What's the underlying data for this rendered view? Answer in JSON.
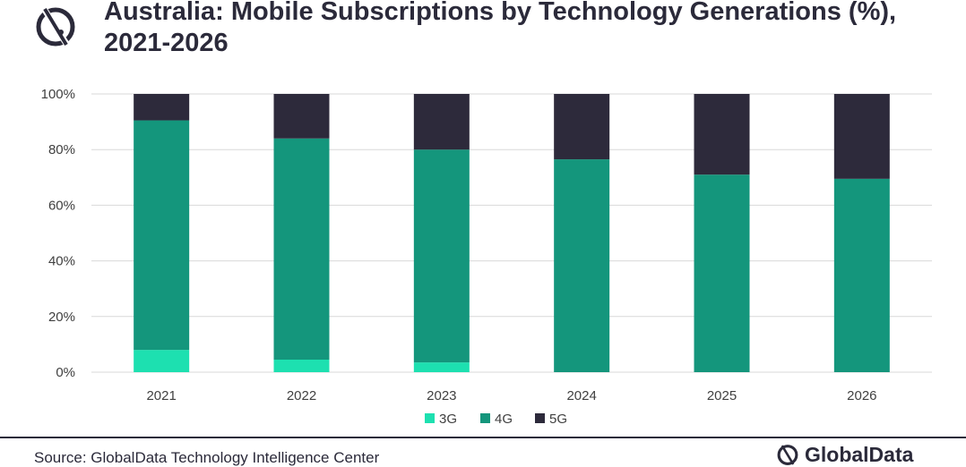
{
  "title": "Australia: Mobile Subscriptions by Technology Generations (%), 2021-2026",
  "source": "Source: GlobalData Technology Intelligence Center",
  "brand": "GlobalData",
  "colors": {
    "3G": "#1de0b0",
    "4G": "#14967c",
    "5G": "#2d2a3b",
    "grid": "#d9d9d9",
    "text": "#404040"
  },
  "chart_data": {
    "type": "bar",
    "stacked": true,
    "categories": [
      "2021",
      "2022",
      "2023",
      "2024",
      "2025",
      "2026"
    ],
    "series": [
      {
        "name": "3G",
        "values": [
          8,
          4.5,
          3.5,
          0,
          0,
          0
        ]
      },
      {
        "name": "4G",
        "values": [
          82.5,
          79.5,
          76.5,
          76.5,
          71,
          69.5
        ]
      },
      {
        "name": "5G",
        "values": [
          9.5,
          16,
          20,
          23.5,
          29,
          30.5
        ]
      }
    ],
    "yticks": [
      "0%",
      "20%",
      "40%",
      "60%",
      "80%",
      "100%"
    ],
    "ylim": [
      0,
      100
    ],
    "grid": true,
    "legend": "bottom"
  }
}
